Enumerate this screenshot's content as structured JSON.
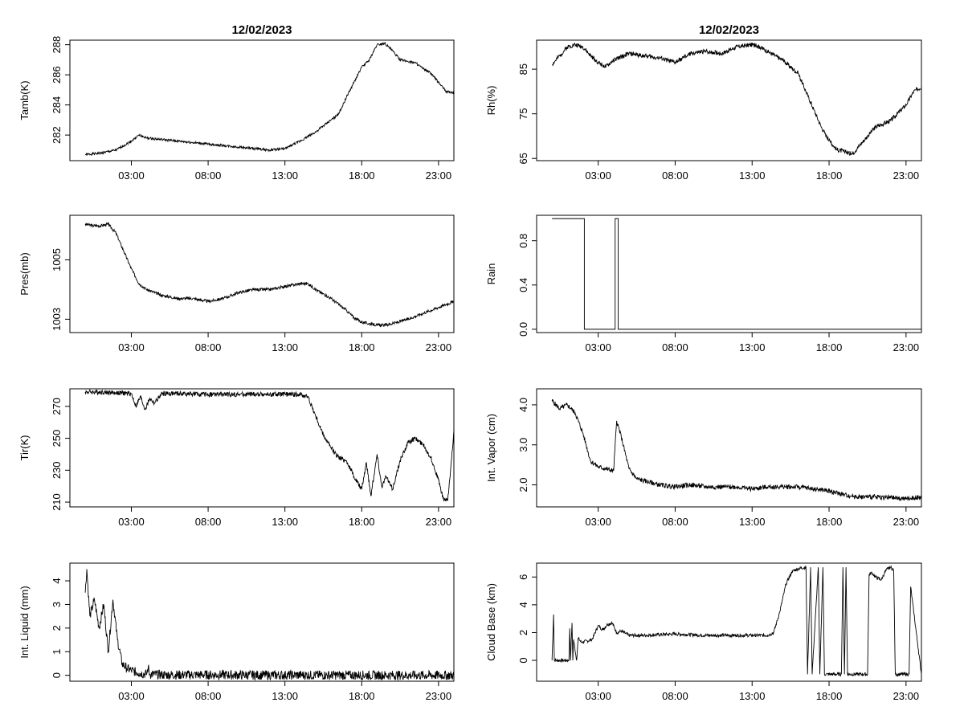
{
  "chart_data": [
    {
      "id": "tamb",
      "type": "line",
      "title": "12/02/2023",
      "ylabel": "Tamb(K)",
      "xlim": [
        -1,
        24
      ],
      "ylim": [
        280.3,
        288.3
      ],
      "yticks": [
        282,
        284,
        286,
        288
      ],
      "xticks": [
        {
          "value": 3,
          "label": "03:00"
        },
        {
          "value": 8,
          "label": "08:00"
        },
        {
          "value": 13,
          "label": "13:00"
        },
        {
          "value": 18,
          "label": "18:00"
        },
        {
          "value": 23,
          "label": "23:00"
        }
      ],
      "series": [
        {
          "name": "Tamb",
          "x": [
            0,
            1,
            2,
            3,
            3.5,
            4,
            5,
            6,
            7,
            8,
            9,
            10,
            11,
            12,
            13,
            14,
            15,
            16,
            16.5,
            17,
            17.5,
            18,
            18.5,
            19,
            19.5,
            20,
            20.5,
            21,
            21.5,
            22,
            22.5,
            23,
            23.5,
            24
          ],
          "y": [
            280.7,
            280.8,
            281.0,
            281.6,
            282.0,
            281.8,
            281.7,
            281.6,
            281.5,
            281.4,
            281.3,
            281.2,
            281.1,
            281.0,
            281.1,
            281.6,
            282.2,
            283.0,
            283.4,
            284.5,
            285.5,
            286.5,
            287.0,
            288.0,
            288.1,
            287.6,
            287.0,
            286.9,
            286.8,
            286.4,
            286.1,
            285.5,
            284.9,
            284.8
          ],
          "noise": 0.08,
          "seed": 1
        }
      ]
    },
    {
      "id": "rh",
      "type": "line",
      "title": "12/02/2023",
      "ylabel": "Rh(%)",
      "xlim": [
        -1,
        24
      ],
      "ylim": [
        64.5,
        91.5
      ],
      "yticks": [
        65,
        75,
        85
      ],
      "xticks": [
        {
          "value": 3,
          "label": "03:00"
        },
        {
          "value": 8,
          "label": "08:00"
        },
        {
          "value": 13,
          "label": "13:00"
        },
        {
          "value": 18,
          "label": "18:00"
        },
        {
          "value": 23,
          "label": "23:00"
        }
      ],
      "series": [
        {
          "name": "Rh",
          "x": [
            0,
            0.5,
            1,
            1.5,
            2,
            2.5,
            3,
            3.5,
            4,
            5,
            6,
            7,
            8,
            9,
            10,
            11,
            12,
            13,
            13.5,
            14,
            15,
            16,
            16.5,
            17,
            17.5,
            18,
            18.5,
            19,
            19.5,
            20,
            20.5,
            21,
            22,
            23,
            23.5,
            24
          ],
          "y": [
            86,
            88,
            90,
            90.5,
            90,
            88,
            86.5,
            85.5,
            87,
            88.5,
            88,
            87.5,
            86.5,
            88.5,
            89,
            88.5,
            90,
            90.5,
            90,
            89,
            87,
            84,
            80,
            76,
            72,
            69,
            67,
            66.5,
            66,
            68,
            70,
            72,
            73.5,
            77,
            80,
            81
          ],
          "noise": 0.5,
          "seed": 2
        }
      ]
    },
    {
      "id": "pres",
      "type": "line",
      "title": "",
      "ylabel": "Pres(mb)",
      "xlim": [
        -1,
        24
      ],
      "ylim": [
        1002.55,
        1006.5
      ],
      "yticks": [
        1003,
        1005
      ],
      "xticks": [
        {
          "value": 3,
          "label": "03:00"
        },
        {
          "value": 8,
          "label": "08:00"
        },
        {
          "value": 13,
          "label": "13:00"
        },
        {
          "value": 18,
          "label": "18:00"
        },
        {
          "value": 23,
          "label": "23:00"
        }
      ],
      "series": [
        {
          "name": "Pres",
          "x": [
            0,
            0.5,
            1,
            1.5,
            2,
            2.5,
            3,
            3.5,
            4,
            5,
            6,
            7,
            8,
            9,
            10,
            11,
            12,
            13,
            14,
            14.5,
            15,
            16,
            17,
            17.5,
            18,
            19,
            19.5,
            20,
            21,
            22,
            23,
            23.5,
            24
          ],
          "y": [
            1006.2,
            1006.15,
            1006.15,
            1006.2,
            1005.9,
            1005.3,
            1004.7,
            1004.2,
            1004.0,
            1003.8,
            1003.7,
            1003.7,
            1003.6,
            1003.7,
            1003.9,
            1004.0,
            1004.0,
            1004.1,
            1004.2,
            1004.2,
            1004.0,
            1003.7,
            1003.3,
            1003.05,
            1002.9,
            1002.8,
            1002.8,
            1002.85,
            1003.0,
            1003.2,
            1003.4,
            1003.5,
            1003.6
          ],
          "noise": 0.05,
          "seed": 3
        }
      ]
    },
    {
      "id": "rain",
      "type": "line",
      "title": "",
      "ylabel": "Rain",
      "xlim": [
        -1,
        24
      ],
      "ylim": [
        -0.03,
        1.03
      ],
      "yticks": [
        0.0,
        0.4,
        0.8
      ],
      "xticks": [
        {
          "value": 3,
          "label": "03:00"
        },
        {
          "value": 8,
          "label": "08:00"
        },
        {
          "value": 13,
          "label": "13:00"
        },
        {
          "value": 18,
          "label": "18:00"
        },
        {
          "value": 23,
          "label": "23:00"
        }
      ],
      "series": [
        {
          "name": "Rain",
          "x": [
            0,
            2.1,
            2.1,
            4.1,
            4.1,
            4.3,
            4.3,
            24
          ],
          "y": [
            1,
            1,
            0,
            0,
            1,
            1,
            0,
            0
          ],
          "noise": 0,
          "seed": 0
        }
      ]
    },
    {
      "id": "tir",
      "type": "line",
      "title": "",
      "ylabel": "Tir(K)",
      "xlim": [
        -1,
        24
      ],
      "ylim": [
        207,
        281
      ],
      "yticks": [
        210,
        230,
        250,
        270
      ],
      "xticks": [
        {
          "value": 3,
          "label": "03:00"
        },
        {
          "value": 8,
          "label": "08:00"
        },
        {
          "value": 13,
          "label": "13:00"
        },
        {
          "value": 18,
          "label": "18:00"
        },
        {
          "value": 23,
          "label": "23:00"
        }
      ],
      "series": [
        {
          "name": "Tir",
          "x": [
            0,
            1,
            2,
            3,
            3.3,
            3.6,
            3.9,
            4.2,
            4.5,
            5,
            6,
            8,
            10,
            12,
            13,
            14,
            14.5,
            15,
            15.5,
            16,
            16.5,
            17,
            17.5,
            18,
            18.3,
            18.6,
            19,
            19.3,
            19.6,
            20,
            20.5,
            21,
            21.5,
            22,
            22.5,
            23,
            23.3,
            23.6,
            23.8,
            24
          ],
          "y": [
            279,
            279,
            278.5,
            278,
            270,
            276,
            268,
            275,
            272,
            278,
            278,
            277.5,
            277.5,
            277.5,
            277.5,
            277.5,
            276,
            264,
            252,
            244,
            238,
            236,
            226,
            218,
            235,
            214,
            240,
            220,
            226,
            218,
            236,
            247,
            250,
            246,
            238,
            224,
            212,
            211,
            232,
            255
          ],
          "noise": 1.5,
          "seed": 4
        }
      ]
    },
    {
      "id": "vapor",
      "type": "line",
      "title": "",
      "ylabel": "Int. Vapor (cm)",
      "xlim": [
        -1,
        24
      ],
      "ylim": [
        1.45,
        4.4
      ],
      "yticks": [
        2.0,
        3.0,
        4.0
      ],
      "xticks": [
        {
          "value": 3,
          "label": "03:00"
        },
        {
          "value": 8,
          "label": "08:00"
        },
        {
          "value": 13,
          "label": "13:00"
        },
        {
          "value": 18,
          "label": "18:00"
        },
        {
          "value": 23,
          "label": "23:00"
        }
      ],
      "series": [
        {
          "name": "Vapor",
          "x": [
            0,
            0.5,
            1,
            1.5,
            2,
            2.5,
            3,
            3.5,
            4,
            4.2,
            4.5,
            5,
            5.5,
            6,
            7,
            8,
            9,
            10,
            11,
            12,
            13,
            14,
            15,
            16,
            17,
            18,
            19,
            20,
            21,
            22,
            23,
            24
          ],
          "y": [
            4.1,
            3.9,
            4.0,
            3.8,
            3.3,
            2.6,
            2.45,
            2.4,
            2.35,
            3.6,
            3.2,
            2.4,
            2.15,
            2.1,
            2.0,
            1.95,
            2.0,
            1.95,
            1.95,
            1.95,
            1.9,
            1.95,
            1.95,
            1.95,
            1.9,
            1.85,
            1.75,
            1.7,
            1.7,
            1.68,
            1.65,
            1.7
          ],
          "noise": 0.06,
          "seed": 5
        }
      ]
    },
    {
      "id": "liquid",
      "type": "line",
      "title": "",
      "ylabel": "Int. Liquid (mm)",
      "xlim": [
        -1,
        24
      ],
      "ylim": [
        -0.25,
        4.75
      ],
      "yticks": [
        0,
        1,
        2,
        3,
        4
      ],
      "xticks": [
        {
          "value": 3,
          "label": "03:00"
        },
        {
          "value": 8,
          "label": "08:00"
        },
        {
          "value": 13,
          "label": "13:00"
        },
        {
          "value": 18,
          "label": "18:00"
        },
        {
          "value": 23,
          "label": "23:00"
        }
      ],
      "series": [
        {
          "name": "Liquid",
          "x": [
            0,
            0.1,
            0.3,
            0.6,
            0.9,
            1.2,
            1.5,
            1.8,
            2.1,
            2.4,
            2.7,
            3,
            3.5,
            4,
            4.1,
            4.2,
            5,
            8,
            12,
            24
          ],
          "y": [
            3.5,
            4.5,
            2.5,
            3.2,
            2.0,
            3.0,
            1.0,
            3.2,
            1.5,
            0.5,
            0.3,
            0.2,
            0.1,
            0.05,
            0.35,
            0.05,
            0.02,
            0.02,
            0.01,
            0.0
          ],
          "noise": 0.2,
          "seed": 6
        }
      ]
    },
    {
      "id": "cloud",
      "type": "line",
      "title": "",
      "ylabel": "Cloud Base (km)",
      "xlim": [
        -1,
        24
      ],
      "ylim": [
        -1.5,
        7.0
      ],
      "yticks": [
        0,
        2,
        4,
        6
      ],
      "xticks": [
        {
          "value": 3,
          "label": "03:00"
        },
        {
          "value": 8,
          "label": "08:00"
        },
        {
          "value": 13,
          "label": "13:00"
        },
        {
          "value": 18,
          "label": "18:00"
        },
        {
          "value": 23,
          "label": "23:00"
        }
      ],
      "series": [
        {
          "name": "CloudBase",
          "x": [
            0,
            0.1,
            0.15,
            1.1,
            1.15,
            1.2,
            1.3,
            1.35,
            1.4,
            1.6,
            1.7,
            1.9,
            2.3,
            2.6,
            3,
            3.3,
            3.6,
            3.9,
            4.2,
            4.5,
            5,
            6,
            8,
            10,
            12,
            14,
            14.4,
            14.8,
            15.2,
            15.6,
            16,
            16.5,
            16.6,
            16.8,
            16.9,
            17.3,
            17.4,
            17.6,
            17.7,
            17.8,
            18.8,
            18.9,
            19,
            19.1,
            19.2,
            20.5,
            20.6,
            20.8,
            21,
            21.4,
            21.6,
            21.8,
            22,
            22.2,
            22.3,
            23.2,
            23.3,
            24
          ],
          "y": [
            0,
            3.3,
            0,
            0,
            2.3,
            0,
            2.7,
            0,
            1.5,
            0,
            1.6,
            1.3,
            1.4,
            1.5,
            2.5,
            2.2,
            2.6,
            2.7,
            2.0,
            2.1,
            1.8,
            1.8,
            1.9,
            1.8,
            1.8,
            1.8,
            2.0,
            3.5,
            5.5,
            6.4,
            6.6,
            6.7,
            -1.0,
            6.7,
            -1.0,
            6.7,
            -1.0,
            6.7,
            -1.0,
            -1.0,
            -1.0,
            6.7,
            -1.0,
            6.7,
            -1.0,
            -1.0,
            6.2,
            6.3,
            6.0,
            5.8,
            6.3,
            6.6,
            6.7,
            6.5,
            -1.0,
            -1.0,
            5.3,
            -1.0
          ],
          "noise": 0.12,
          "seed": 7
        }
      ]
    }
  ]
}
